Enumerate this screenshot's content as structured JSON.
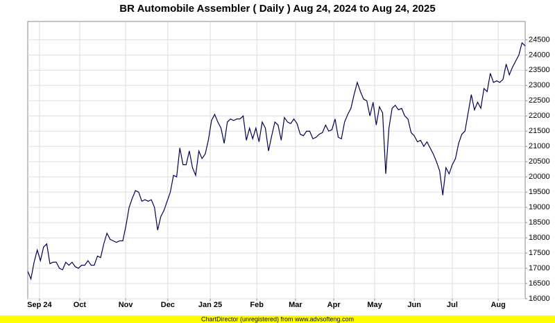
{
  "chart_data": {
    "type": "line",
    "title": "BR Automobile Assembler ( Daily ) Aug 24, 2024 to Aug 24, 2025",
    "footer": "ChartDirector (unregistered) from www.advsofteng.com",
    "grid": true,
    "color": "#000050",
    "xlim": [
      0,
      157
    ],
    "xticks": [
      {
        "value": 3.7,
        "label": "Sep 24"
      },
      {
        "value": 16.4,
        "label": "Oct"
      },
      {
        "value": 30.9,
        "label": "Nov"
      },
      {
        "value": 44.2,
        "label": "Dec"
      },
      {
        "value": 57.6,
        "label": "Jan 25"
      },
      {
        "value": 72.3,
        "label": "Feb"
      },
      {
        "value": 84.5,
        "label": "Mar"
      },
      {
        "value": 96.6,
        "label": "Apr"
      },
      {
        "value": 109.5,
        "label": "May"
      },
      {
        "value": 122,
        "label": "Jun"
      },
      {
        "value": 134,
        "label": "Jul"
      },
      {
        "value": 148.5,
        "label": "Aug"
      }
    ],
    "ylim": [
      16000,
      25100
    ],
    "yticks": [
      16000,
      16500,
      17000,
      17500,
      18000,
      18500,
      19000,
      19500,
      20000,
      20500,
      21000,
      21500,
      22000,
      22500,
      23000,
      23500,
      24000,
      24500
    ],
    "values": [
      16900,
      16650,
      17200,
      17600,
      17250,
      17700,
      17800,
      17150,
      17200,
      17200,
      17000,
      16950,
      17200,
      17100,
      17200,
      17050,
      17000,
      17100,
      17100,
      17250,
      17100,
      17100,
      17400,
      17350,
      17800,
      18150,
      17950,
      17900,
      17850,
      17900,
      17900,
      18400,
      19000,
      19300,
      19550,
      19500,
      19200,
      19250,
      19200,
      19250,
      19000,
      18250,
      18700,
      18900,
      19200,
      19500,
      20050,
      20000,
      20950,
      20400,
      20400,
      20850,
      20300,
      20050,
      20850,
      20600,
      20750,
      21200,
      21850,
      22050,
      21800,
      21600,
      21100,
      21800,
      21900,
      21850,
      21900,
      21900,
      22000,
      21200,
      21600,
      21250,
      21600,
      21150,
      21800,
      21600,
      20850,
      21350,
      21800,
      21700,
      21200,
      21950,
      21800,
      21750,
      21900,
      21750,
      21400,
      21350,
      21500,
      21500,
      21250,
      21300,
      21400,
      21450,
      21700,
      21500,
      21550,
      21900,
      21300,
      21250,
      21800,
      22050,
      22250,
      22700,
      23100,
      22800,
      22550,
      22500,
      22000,
      22450,
      21700,
      22300,
      22100,
      20100,
      21600,
      22250,
      22350,
      22200,
      22250,
      22000,
      21900,
      21450,
      21350,
      21150,
      21200,
      21000,
      21150,
      20950,
      20750,
      20500,
      20200,
      19400,
      20300,
      20100,
      20400,
      20600,
      21100,
      21400,
      21500,
      22100,
      22700,
      22200,
      22450,
      22250,
      22900,
      22800,
      23400,
      23100,
      23150,
      23100,
      23200,
      23700,
      23350,
      23600,
      23800,
      24000,
      24400,
      24300
    ]
  }
}
